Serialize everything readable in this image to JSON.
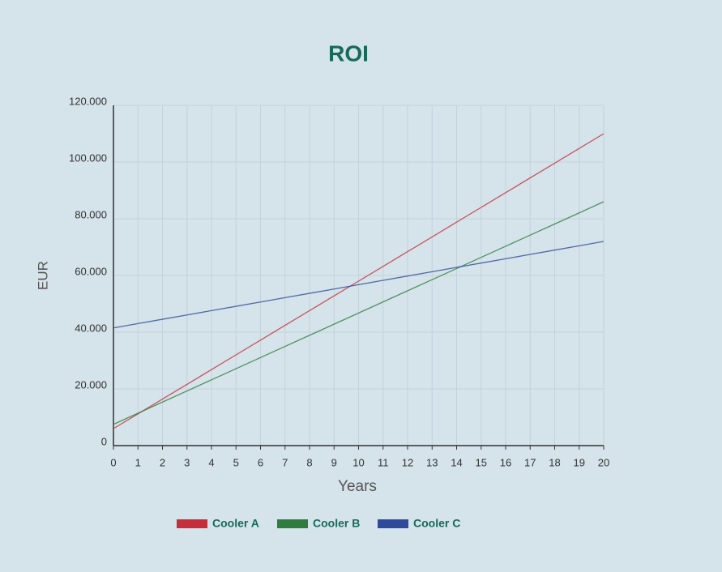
{
  "chart_data": {
    "type": "line",
    "title": "ROI",
    "x_label": "Years",
    "y_label": "EUR",
    "x": [
      0,
      1,
      2,
      3,
      4,
      5,
      6,
      7,
      8,
      9,
      10,
      11,
      12,
      13,
      14,
      15,
      16,
      17,
      18,
      19,
      20
    ],
    "series": [
      {
        "name": "Cooler A",
        "color": "#c62f3a",
        "values": [
          6000,
          11200,
          16400,
          21600,
          26800,
          32000,
          37200,
          42400,
          47600,
          52800,
          58000,
          63200,
          68400,
          73600,
          78800,
          84000,
          89200,
          94400,
          99600,
          104800,
          110000
        ]
      },
      {
        "name": "Cooler B",
        "color": "#2e7d3f",
        "values": [
          7500,
          11425,
          15350,
          19275,
          23200,
          27125,
          31050,
          34975,
          38900,
          42825,
          46750,
          50675,
          54600,
          58525,
          62450,
          66375,
          70300,
          74225,
          78150,
          82075,
          86000
        ]
      },
      {
        "name": "Cooler C",
        "color": "#2f4a9a",
        "values": [
          41500,
          43025,
          44550,
          46075,
          47600,
          49125,
          50650,
          52175,
          53700,
          55225,
          56750,
          58275,
          59800,
          61325,
          62850,
          64375,
          65900,
          67425,
          68950,
          70475,
          72000
        ]
      }
    ],
    "xlim": [
      0,
      20
    ],
    "xticks": [
      0,
      1,
      2,
      3,
      4,
      5,
      6,
      7,
      8,
      9,
      10,
      11,
      12,
      13,
      14,
      15,
      16,
      17,
      18,
      19,
      20
    ],
    "ylim": [
      0,
      120000
    ],
    "yticks": [
      0,
      {
        "value": 20000,
        "label": "20.000"
      },
      {
        "value": 40000,
        "label": "40.000"
      },
      {
        "value": 60000,
        "label": "60.000"
      },
      {
        "value": 80000,
        "label": "80.000"
      },
      {
        "value": 100000,
        "label": "100.000"
      },
      {
        "value": 120000,
        "label": "120.000"
      }
    ],
    "grid": true,
    "legend": "bottom"
  }
}
